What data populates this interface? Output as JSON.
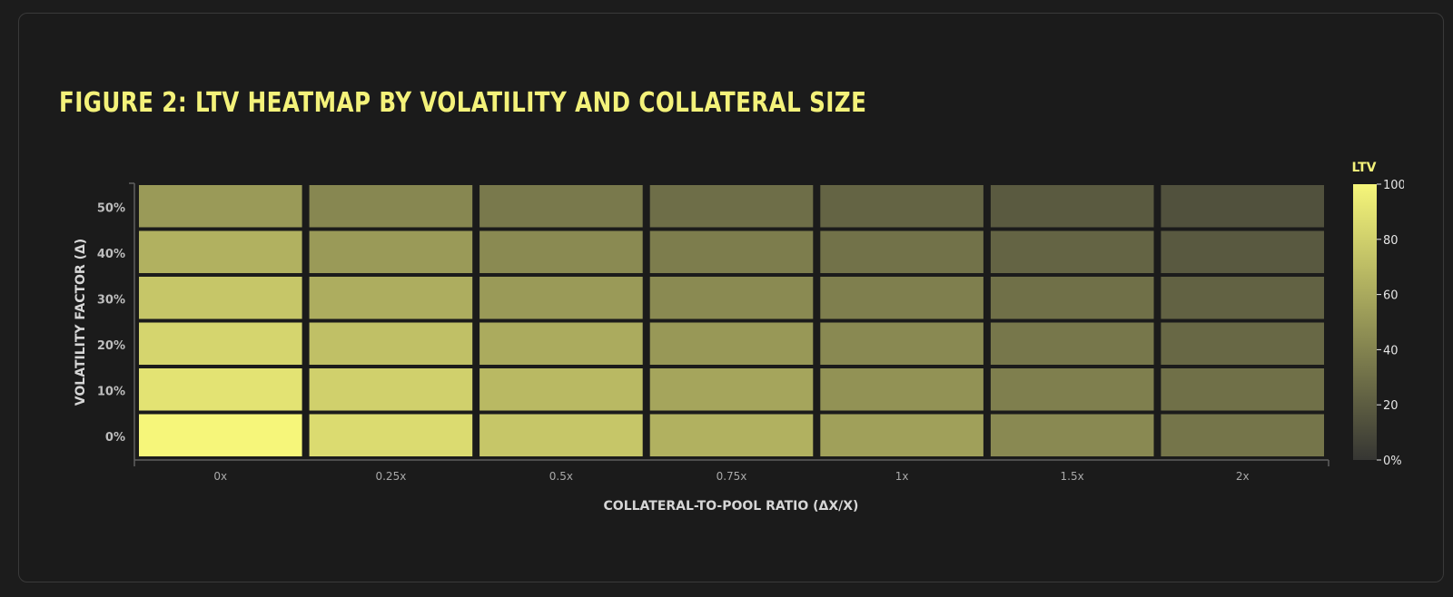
{
  "title": "FIGURE 2: LTV HEATMAP BY VOLATILITY AND COLLATERAL SIZE",
  "colors": {
    "background": "#1c1c1c",
    "accent": "#f4f27a",
    "scale_low": "#363633",
    "scale_high": "#f6f67a"
  },
  "chart_data": {
    "type": "heatmap",
    "title": "FIGURE 2: LTV HEATMAP BY VOLATILITY AND COLLATERAL SIZE",
    "xlabel": "COLLATERAL-TO-POOL RATIO (ΔX/X)",
    "ylabel": "VOLATILITY FACTOR (Δ)",
    "x": [
      "0x",
      "0.25x",
      "0.5x",
      "0.75x",
      "1x",
      "1.5x",
      "2x"
    ],
    "y": [
      "0%",
      "10%",
      "20%",
      "30%",
      "40%",
      "50%"
    ],
    "values": [
      [
        100,
        86,
        75,
        64,
        55,
        43,
        33
      ],
      [
        90,
        80,
        68,
        58,
        48,
        38,
        30
      ],
      [
        83,
        72,
        61,
        51,
        43,
        34,
        26
      ],
      [
        75,
        62,
        52,
        44,
        38,
        30,
        23
      ],
      [
        64,
        52,
        44,
        37,
        31,
        24,
        18
      ],
      [
        52,
        42,
        35,
        29,
        24,
        19,
        14
      ]
    ],
    "colorscale": {
      "title": "LTV",
      "range": [
        0,
        100
      ],
      "ticks": [
        "0%",
        "20",
        "40",
        "60",
        "80",
        "100"
      ]
    }
  }
}
